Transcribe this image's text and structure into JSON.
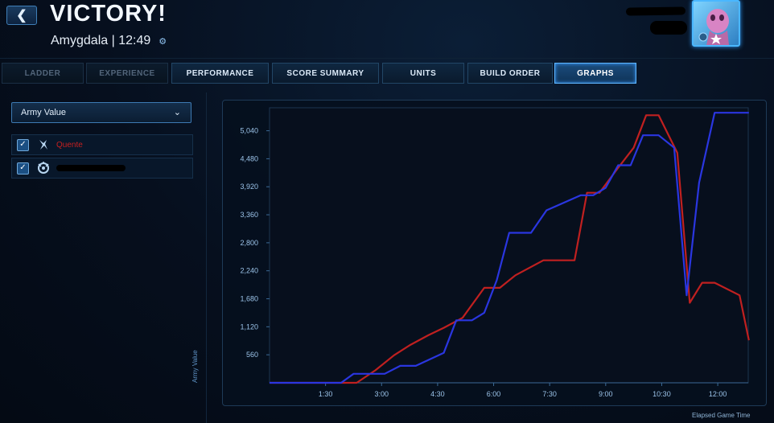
{
  "header": {
    "back_icon": "chevron-left-icon",
    "title": "VICTORY!",
    "subtitle": "Amygdala | 12:49",
    "gear_icon": "gear-icon"
  },
  "tabs": [
    {
      "label": "LADDER",
      "state": "disabled"
    },
    {
      "label": "EXPERIENCE",
      "state": "disabled"
    },
    {
      "label": "PERFORMANCE",
      "state": "normal"
    },
    {
      "label": "SCORE SUMMARY",
      "state": "normal"
    },
    {
      "label": "UNITS",
      "state": "normal"
    },
    {
      "label": "BUILD ORDER",
      "state": "normal"
    },
    {
      "label": "GRAPHS",
      "state": "active"
    }
  ],
  "graph_selector": {
    "selected": "Army Value",
    "icon": "chevron-down-icon"
  },
  "players": [
    {
      "name": "Quente",
      "checked": true,
      "race_icon": "protoss-icon",
      "color": "#c62020"
    },
    {
      "name": "",
      "checked": true,
      "race_icon": "zerg-icon",
      "color": "#2233dd",
      "redacted": true
    }
  ],
  "chart_data": {
    "type": "line",
    "xlabel": "Elapsed Game Time",
    "ylabel": "Army Value",
    "x_tick_labels": [
      "1:30",
      "3:00",
      "4:30",
      "6:00",
      "7:30",
      "9:00",
      "10:30",
      "12:00"
    ],
    "x_ticks_sec": [
      90,
      180,
      270,
      360,
      450,
      540,
      630,
      720
    ],
    "y_tick_labels": [
      "560",
      "1,120",
      "1,680",
      "2,240",
      "2,800",
      "3,360",
      "3,920",
      "4,480",
      "5,040"
    ],
    "y_ticks": [
      560,
      1120,
      1680,
      2240,
      2800,
      3360,
      3920,
      4480,
      5040
    ],
    "xlim": [
      0,
      769
    ],
    "ylim": [
      0,
      5500
    ],
    "grid": false,
    "series": [
      {
        "name": "Quente",
        "color": "#c02020",
        "points": [
          [
            0,
            0
          ],
          [
            140,
            0
          ],
          [
            170,
            250
          ],
          [
            200,
            550
          ],
          [
            225,
            750
          ],
          [
            255,
            950
          ],
          [
            280,
            1100
          ],
          [
            310,
            1300
          ],
          [
            345,
            1900
          ],
          [
            370,
            1900
          ],
          [
            395,
            2150
          ],
          [
            440,
            2450
          ],
          [
            490,
            2450
          ],
          [
            510,
            3800
          ],
          [
            530,
            3800
          ],
          [
            560,
            4300
          ],
          [
            585,
            4700
          ],
          [
            605,
            5350
          ],
          [
            625,
            5350
          ],
          [
            655,
            4600
          ],
          [
            675,
            1600
          ],
          [
            695,
            2000
          ],
          [
            715,
            2000
          ],
          [
            755,
            1750
          ],
          [
            770,
            850
          ]
        ]
      },
      {
        "name": "",
        "color": "#2a36e0",
        "points": [
          [
            0,
            0
          ],
          [
            115,
            0
          ],
          [
            135,
            180
          ],
          [
            185,
            180
          ],
          [
            210,
            340
          ],
          [
            235,
            340
          ],
          [
            280,
            600
          ],
          [
            300,
            1250
          ],
          [
            325,
            1250
          ],
          [
            345,
            1400
          ],
          [
            365,
            2050
          ],
          [
            385,
            3000
          ],
          [
            420,
            3000
          ],
          [
            445,
            3450
          ],
          [
            500,
            3750
          ],
          [
            520,
            3750
          ],
          [
            540,
            3900
          ],
          [
            560,
            4350
          ],
          [
            580,
            4350
          ],
          [
            600,
            4950
          ],
          [
            625,
            4950
          ],
          [
            650,
            4700
          ],
          [
            670,
            1750
          ],
          [
            690,
            4000
          ],
          [
            715,
            5400
          ],
          [
            770,
            5400
          ]
        ]
      }
    ]
  }
}
